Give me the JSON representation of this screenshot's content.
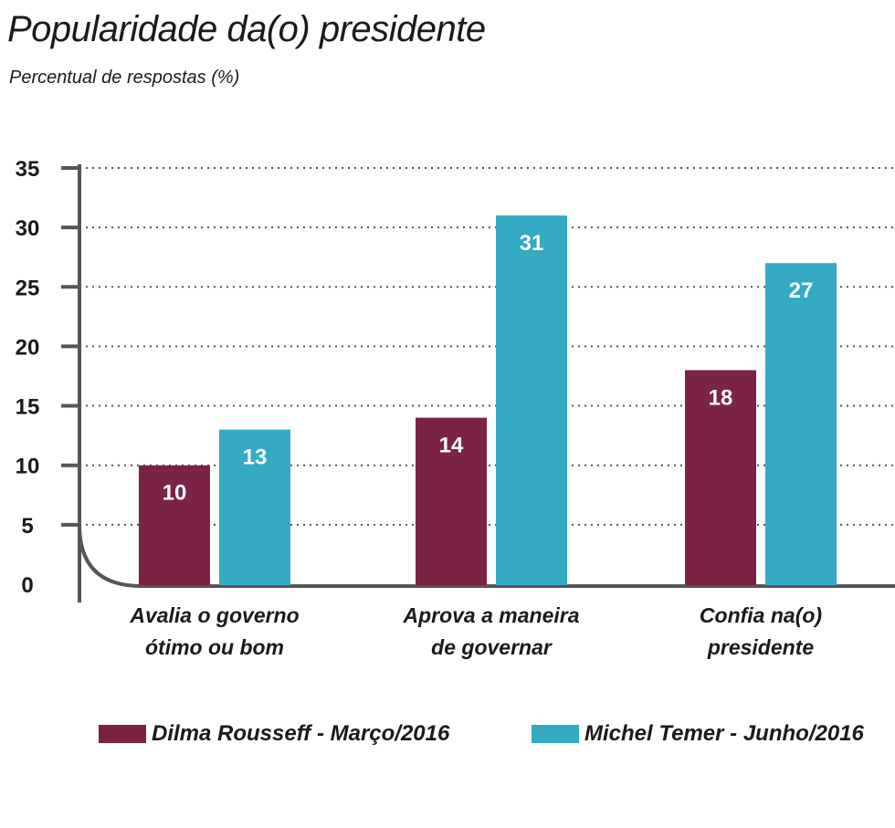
{
  "chart_data": {
    "type": "bar",
    "title": "Popularidade da(o) presidente",
    "subtitle": "Percentual de respostas (%)",
    "categories": [
      [
        "Avalia o governo",
        "ótimo ou bom"
      ],
      [
        "Aprova a maneira",
        "de governar"
      ],
      [
        "Confia na(o)",
        "presidente"
      ]
    ],
    "series": [
      {
        "name": "Dilma Rousseff - Março/2016",
        "color": "#7a2344",
        "values": [
          10,
          14,
          18
        ]
      },
      {
        "name": "Michel Temer  - Junho/2016",
        "color": "#34aac5",
        "values": [
          13,
          31,
          27
        ]
      }
    ],
    "ylim": [
      0,
      35
    ],
    "yticks": [
      0,
      5,
      10,
      15,
      20,
      25,
      30,
      35
    ],
    "grid": true,
    "legend_position": "bottom"
  }
}
